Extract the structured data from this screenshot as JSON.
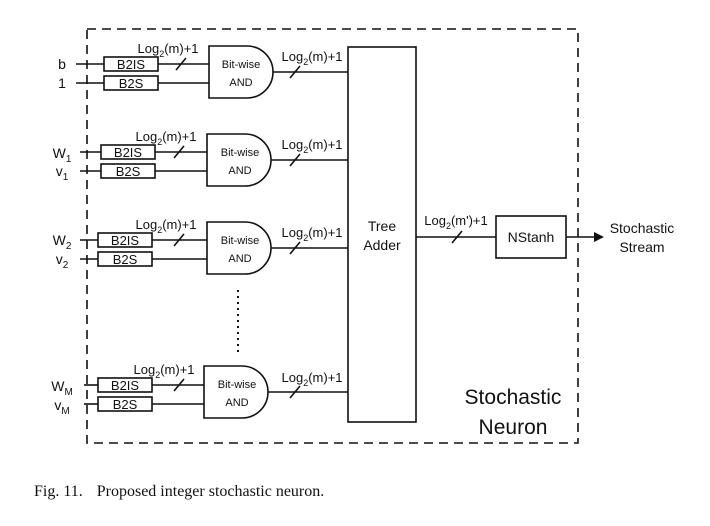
{
  "container_label": {
    "line1": "Stochastic",
    "line2": "Neuron"
  },
  "rows": [
    {
      "top_input": "b",
      "top_sub": "",
      "bottom_input": "1",
      "bottom_sub": "",
      "block_top": "B2IS",
      "block_bottom": "B2S",
      "bus_in": {
        "pre": "Log",
        "sub": "2",
        "post": "(m)+1"
      },
      "gate": {
        "line1": "Bit-wise",
        "line2": "AND"
      },
      "bus_out": {
        "pre": "Log",
        "sub": "2",
        "post": "(m)+1"
      }
    },
    {
      "top_input": "W",
      "top_sub": "1",
      "bottom_input": "v",
      "bottom_sub": "1",
      "block_top": "B2IS",
      "block_bottom": "B2S",
      "bus_in": {
        "pre": "Log",
        "sub": "2",
        "post": "(m)+1"
      },
      "gate": {
        "line1": "Bit-wise",
        "line2": "AND"
      },
      "bus_out": {
        "pre": "Log",
        "sub": "2",
        "post": "(m)+1"
      }
    },
    {
      "top_input": "W",
      "top_sub": "2",
      "bottom_input": "v",
      "bottom_sub": "2",
      "block_top": "B2IS",
      "block_bottom": "B2S",
      "bus_in": {
        "pre": "Log",
        "sub": "2",
        "post": "(m)+1"
      },
      "gate": {
        "line1": "Bit-wise",
        "line2": "AND"
      },
      "bus_out": {
        "pre": "Log",
        "sub": "2",
        "post": "(m)+1"
      }
    },
    {
      "top_input": "W",
      "top_sub": "M",
      "bottom_input": "v",
      "bottom_sub": "M",
      "block_top": "B2IS",
      "block_bottom": "B2S",
      "bus_in": {
        "pre": "Log",
        "sub": "2",
        "post": "(m)+1"
      },
      "gate": {
        "line1": "Bit-wise",
        "line2": "AND"
      },
      "bus_out": {
        "pre": "Log",
        "sub": "2",
        "post": "(m)+1"
      }
    }
  ],
  "tree_adder": {
    "line1": "Tree",
    "line2": "Adder"
  },
  "adder_bus": {
    "pre": "Log",
    "sub": "2",
    "post": "(m')+1"
  },
  "nstanh": {
    "label": "NStanh"
  },
  "output": {
    "line1": "Stochastic",
    "line2": "Stream"
  },
  "caption": {
    "fig": "Fig. 11.",
    "text": "Proposed integer stochastic neuron."
  }
}
